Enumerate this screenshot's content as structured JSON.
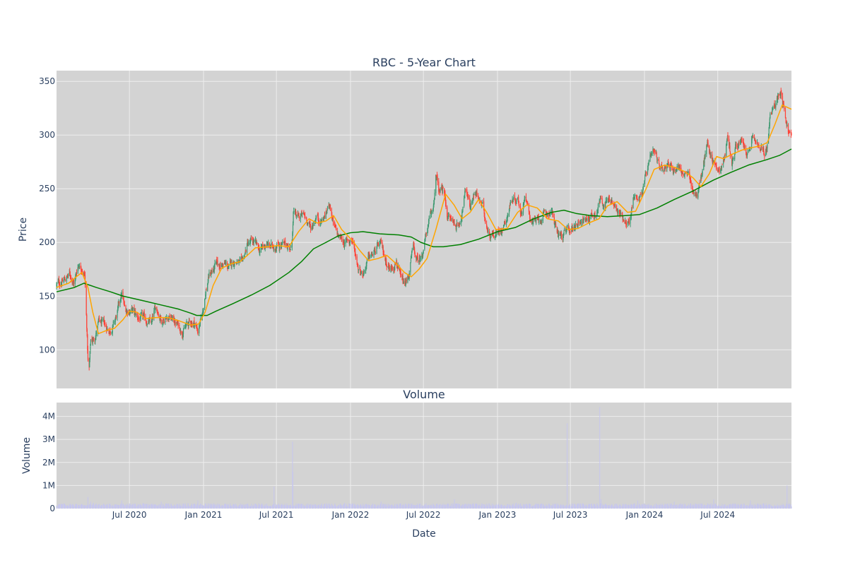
{
  "chart_data": [
    {
      "type": "candlestick",
      "title": "RBC - 5-Year Chart",
      "ylabel": "Price",
      "ylim": [
        64,
        360
      ],
      "yticks": [
        100,
        150,
        200,
        250,
        300,
        350
      ],
      "xlim": [
        "2020-01-02",
        "2024-12-31"
      ],
      "grid": true,
      "colors": {
        "up": "#3d9970",
        "down": "#ff4136",
        "ma_short": "#ffa500",
        "ma_long": "#008000",
        "plot_bg": "#d3d3d3",
        "grid": "#eeeeee"
      },
      "close_path": [
        [
          "2020-01-02",
          160
        ],
        [
          "2020-01-20",
          165
        ],
        [
          "2020-02-05",
          170
        ],
        [
          "2020-02-15",
          162
        ],
        [
          "2020-02-25",
          180
        ],
        [
          "2020-03-05",
          178
        ],
        [
          "2020-03-12",
          170
        ],
        [
          "2020-03-17",
          122
        ],
        [
          "2020-03-20",
          90
        ],
        [
          "2020-03-23",
          82
        ],
        [
          "2020-03-27",
          108
        ],
        [
          "2020-04-05",
          110
        ],
        [
          "2020-04-15",
          125
        ],
        [
          "2020-04-30",
          122
        ],
        [
          "2020-05-12",
          118
        ],
        [
          "2020-05-25",
          125
        ],
        [
          "2020-06-05",
          140
        ],
        [
          "2020-06-12",
          152
        ],
        [
          "2020-06-20",
          136
        ],
        [
          "2020-07-05",
          138
        ],
        [
          "2020-07-20",
          130
        ],
        [
          "2020-08-05",
          128
        ],
        [
          "2020-08-25",
          124
        ],
        [
          "2020-09-05",
          140
        ],
        [
          "2020-09-20",
          128
        ],
        [
          "2020-10-05",
          132
        ],
        [
          "2020-10-25",
          125
        ],
        [
          "2020-11-08",
          118
        ],
        [
          "2020-11-25",
          124
        ],
        [
          "2020-12-08",
          126
        ],
        [
          "2020-12-18",
          118
        ],
        [
          "2020-12-28",
          130
        ],
        [
          "2021-01-05",
          152
        ],
        [
          "2021-01-15",
          170
        ],
        [
          "2021-02-01",
          178
        ],
        [
          "2021-02-20",
          180
        ],
        [
          "2021-03-05",
          176
        ],
        [
          "2021-03-20",
          184
        ],
        [
          "2021-04-05",
          178
        ],
        [
          "2021-04-20",
          198
        ],
        [
          "2021-05-05",
          200
        ],
        [
          "2021-05-20",
          192
        ],
        [
          "2021-06-05",
          198
        ],
        [
          "2021-06-20",
          195
        ],
        [
          "2021-07-05",
          200
        ],
        [
          "2021-07-20",
          196
        ],
        [
          "2021-08-01",
          198
        ],
        [
          "2021-08-08",
          192
        ],
        [
          "2021-08-12",
          230
        ],
        [
          "2021-08-20",
          222
        ],
        [
          "2021-09-01",
          225
        ],
        [
          "2021-09-15",
          222
        ],
        [
          "2021-09-25",
          212
        ],
        [
          "2021-10-08",
          226
        ],
        [
          "2021-10-20",
          220
        ],
        [
          "2021-11-01",
          226
        ],
        [
          "2021-11-10",
          238
        ],
        [
          "2021-11-20",
          215
        ],
        [
          "2021-12-01",
          205
        ],
        [
          "2021-12-20",
          200
        ],
        [
          "2022-01-05",
          203
        ],
        [
          "2022-01-20",
          178
        ],
        [
          "2022-02-01",
          172
        ],
        [
          "2022-02-15",
          185
        ],
        [
          "2022-03-01",
          190
        ],
        [
          "2022-03-15",
          198
        ],
        [
          "2022-03-28",
          185
        ],
        [
          "2022-04-10",
          175
        ],
        [
          "2022-04-25",
          185
        ],
        [
          "2022-05-05",
          165
        ],
        [
          "2022-05-15",
          158
        ],
        [
          "2022-05-25",
          168
        ],
        [
          "2022-06-05",
          195
        ],
        [
          "2022-06-15",
          182
        ],
        [
          "2022-06-25",
          185
        ],
        [
          "2022-07-10",
          212
        ],
        [
          "2022-07-25",
          230
        ],
        [
          "2022-08-01",
          262
        ],
        [
          "2022-08-10",
          245
        ],
        [
          "2022-08-20",
          250
        ],
        [
          "2022-08-30",
          225
        ],
        [
          "2022-09-10",
          220
        ],
        [
          "2022-09-25",
          215
        ],
        [
          "2022-10-05",
          230
        ],
        [
          "2022-10-15",
          250
        ],
        [
          "2022-10-25",
          235
        ],
        [
          "2022-11-05",
          248
        ],
        [
          "2022-11-15",
          240
        ],
        [
          "2022-11-25",
          232
        ],
        [
          "2022-12-10",
          210
        ],
        [
          "2022-12-25",
          208
        ],
        [
          "2023-01-05",
          210
        ],
        [
          "2023-01-20",
          220
        ],
        [
          "2023-02-05",
          240
        ],
        [
          "2023-02-20",
          242
        ],
        [
          "2023-03-01",
          228
        ],
        [
          "2023-03-10",
          245
        ],
        [
          "2023-03-20",
          225
        ],
        [
          "2023-04-05",
          218
        ],
        [
          "2023-04-20",
          222
        ],
        [
          "2023-05-05",
          226
        ],
        [
          "2023-05-15",
          232
        ],
        [
          "2023-05-25",
          212
        ],
        [
          "2023-06-10",
          205
        ],
        [
          "2023-06-25",
          210
        ],
        [
          "2023-07-10",
          215
        ],
        [
          "2023-07-25",
          222
        ],
        [
          "2023-08-05",
          220
        ],
        [
          "2023-08-20",
          225
        ],
        [
          "2023-09-01",
          228
        ],
        [
          "2023-09-15",
          242
        ],
        [
          "2023-09-28",
          236
        ],
        [
          "2023-10-10",
          240
        ],
        [
          "2023-10-25",
          228
        ],
        [
          "2023-11-05",
          225
        ],
        [
          "2023-11-15",
          222
        ],
        [
          "2023-11-25",
          218
        ],
        [
          "2023-12-05",
          242
        ],
        [
          "2023-12-25",
          245
        ],
        [
          "2024-01-05",
          262
        ],
        [
          "2024-01-15",
          275
        ],
        [
          "2024-01-25",
          282
        ],
        [
          "2024-02-05",
          272
        ],
        [
          "2024-02-15",
          270
        ],
        [
          "2024-02-25",
          275
        ],
        [
          "2024-03-10",
          268
        ],
        [
          "2024-03-25",
          272
        ],
        [
          "2024-04-05",
          265
        ],
        [
          "2024-04-20",
          260
        ],
        [
          "2024-05-01",
          248
        ],
        [
          "2024-05-10",
          245
        ],
        [
          "2024-05-25",
          268
        ],
        [
          "2024-06-05",
          292
        ],
        [
          "2024-06-15",
          280
        ],
        [
          "2024-06-25",
          272
        ],
        [
          "2024-07-10",
          268
        ],
        [
          "2024-07-20",
          285
        ],
        [
          "2024-07-25",
          300
        ],
        [
          "2024-08-05",
          275
        ],
        [
          "2024-08-15",
          290
        ],
        [
          "2024-08-25",
          292
        ],
        [
          "2024-09-05",
          288
        ],
        [
          "2024-09-15",
          280
        ],
        [
          "2024-09-25",
          298
        ],
        [
          "2024-10-05",
          292
        ],
        [
          "2024-10-15",
          285
        ],
        [
          "2024-10-25",
          282
        ],
        [
          "2024-11-01",
          290
        ],
        [
          "2024-11-08",
          318
        ],
        [
          "2024-11-15",
          322
        ],
        [
          "2024-11-25",
          335
        ],
        [
          "2024-12-05",
          342
        ],
        [
          "2024-12-15",
          320
        ],
        [
          "2024-12-22",
          305
        ],
        [
          "2024-12-31",
          298
        ]
      ],
      "ma_short": [
        [
          "2020-01-02",
          158
        ],
        [
          "2020-02-01",
          162
        ],
        [
          "2020-02-20",
          168
        ],
        [
          "2020-03-05",
          172
        ],
        [
          "2020-03-20",
          158
        ],
        [
          "2020-04-01",
          135
        ],
        [
          "2020-04-15",
          115
        ],
        [
          "2020-05-05",
          118
        ],
        [
          "2020-05-25",
          120
        ],
        [
          "2020-06-15",
          128
        ],
        [
          "2020-07-01",
          136
        ],
        [
          "2020-07-20",
          135
        ],
        [
          "2020-08-10",
          129
        ],
        [
          "2020-09-05",
          130
        ],
        [
          "2020-10-05",
          130
        ],
        [
          "2020-11-01",
          127
        ],
        [
          "2020-12-01",
          123
        ],
        [
          "2020-12-20",
          124
        ],
        [
          "2021-01-05",
          135
        ],
        [
          "2021-01-25",
          160
        ],
        [
          "2021-02-15",
          176
        ],
        [
          "2021-03-10",
          180
        ],
        [
          "2021-04-01",
          182
        ],
        [
          "2021-04-20",
          188
        ],
        [
          "2021-05-10",
          195
        ],
        [
          "2021-06-10",
          196
        ],
        [
          "2021-07-05",
          197
        ],
        [
          "2021-08-01",
          196
        ],
        [
          "2021-08-25",
          210
        ],
        [
          "2021-09-20",
          222
        ],
        [
          "2021-10-10",
          218
        ],
        [
          "2021-11-01",
          220
        ],
        [
          "2021-11-20",
          225
        ],
        [
          "2021-12-10",
          212
        ],
        [
          "2022-01-05",
          202
        ],
        [
          "2022-01-25",
          192
        ],
        [
          "2022-02-15",
          183
        ],
        [
          "2022-03-10",
          185
        ],
        [
          "2022-04-01",
          188
        ],
        [
          "2022-04-25",
          180
        ],
        [
          "2022-05-15",
          172
        ],
        [
          "2022-06-01",
          168
        ],
        [
          "2022-06-20",
          175
        ],
        [
          "2022-07-10",
          185
        ],
        [
          "2022-08-01",
          212
        ],
        [
          "2022-08-25",
          245
        ],
        [
          "2022-09-15",
          235
        ],
        [
          "2022-10-05",
          222
        ],
        [
          "2022-10-25",
          228
        ],
        [
          "2022-11-15",
          240
        ],
        [
          "2022-12-05",
          228
        ],
        [
          "2022-12-28",
          212
        ],
        [
          "2023-01-25",
          213
        ],
        [
          "2023-02-20",
          228
        ],
        [
          "2023-03-15",
          235
        ],
        [
          "2023-04-10",
          232
        ],
        [
          "2023-05-05",
          222
        ],
        [
          "2023-06-01",
          220
        ],
        [
          "2023-06-25",
          212
        ],
        [
          "2023-07-20",
          213
        ],
        [
          "2023-08-15",
          218
        ],
        [
          "2023-09-10",
          222
        ],
        [
          "2023-10-01",
          234
        ],
        [
          "2023-10-25",
          238
        ],
        [
          "2023-11-20",
          228
        ],
        [
          "2023-12-10",
          229
        ],
        [
          "2024-01-05",
          250
        ],
        [
          "2024-01-25",
          268
        ],
        [
          "2024-02-20",
          272
        ],
        [
          "2024-03-15",
          270
        ],
        [
          "2024-04-10",
          266
        ],
        [
          "2024-05-01",
          260
        ],
        [
          "2024-05-20",
          252
        ],
        [
          "2024-06-10",
          264
        ],
        [
          "2024-06-28",
          280
        ],
        [
          "2024-07-15",
          278
        ],
        [
          "2024-08-05",
          282
        ],
        [
          "2024-08-30",
          286
        ],
        [
          "2024-09-20",
          288
        ],
        [
          "2024-10-15",
          290
        ],
        [
          "2024-11-01",
          293
        ],
        [
          "2024-11-20",
          310
        ],
        [
          "2024-12-08",
          328
        ],
        [
          "2024-12-31",
          324
        ]
      ],
      "ma_long": [
        [
          "2020-01-02",
          154
        ],
        [
          "2020-02-15",
          158
        ],
        [
          "2020-03-10",
          162
        ],
        [
          "2020-04-10",
          158
        ],
        [
          "2020-05-15",
          154
        ],
        [
          "2020-06-15",
          150
        ],
        [
          "2020-08-01",
          146
        ],
        [
          "2020-09-15",
          142
        ],
        [
          "2020-10-30",
          138
        ],
        [
          "2020-12-01",
          134
        ],
        [
          "2020-12-15",
          132
        ],
        [
          "2021-01-10",
          132
        ],
        [
          "2021-02-01",
          136
        ],
        [
          "2021-03-15",
          143
        ],
        [
          "2021-04-30",
          151
        ],
        [
          "2021-06-15",
          160
        ],
        [
          "2021-08-01",
          172
        ],
        [
          "2021-09-01",
          182
        ],
        [
          "2021-10-01",
          194
        ],
        [
          "2021-11-01",
          200
        ],
        [
          "2021-12-01",
          206
        ],
        [
          "2022-01-01",
          209
        ],
        [
          "2022-02-01",
          210
        ],
        [
          "2022-03-15",
          208
        ],
        [
          "2022-05-01",
          207
        ],
        [
          "2022-06-01",
          205
        ],
        [
          "2022-06-25",
          200
        ],
        [
          "2022-07-25",
          196
        ],
        [
          "2022-08-20",
          196
        ],
        [
          "2022-10-01",
          198
        ],
        [
          "2022-11-15",
          203
        ],
        [
          "2023-01-01",
          210
        ],
        [
          "2023-02-15",
          214
        ],
        [
          "2023-04-01",
          222
        ],
        [
          "2023-05-15",
          228
        ],
        [
          "2023-06-15",
          230
        ],
        [
          "2023-07-15",
          227
        ],
        [
          "2023-08-20",
          225
        ],
        [
          "2023-10-01",
          224
        ],
        [
          "2023-11-15",
          225
        ],
        [
          "2023-12-20",
          226
        ],
        [
          "2024-02-01",
          232
        ],
        [
          "2024-03-15",
          240
        ],
        [
          "2024-05-01",
          248
        ],
        [
          "2024-06-20",
          258
        ],
        [
          "2024-08-01",
          265
        ],
        [
          "2024-09-15",
          272
        ],
        [
          "2024-10-30",
          277
        ],
        [
          "2024-12-01",
          281
        ],
        [
          "2024-12-31",
          287
        ]
      ]
    },
    {
      "type": "bar",
      "title": "Volume",
      "xlabel": "Date",
      "ylabel": "Volume",
      "ylim": [
        0,
        4600000
      ],
      "yticks": [
        0,
        1000000,
        2000000,
        3000000,
        4000000
      ],
      "ytick_labels": [
        "0",
        "1M",
        "2M",
        "3M",
        "4M"
      ],
      "xlim": [
        "2020-01-02",
        "2024-12-31"
      ],
      "xticks": [
        "2020-07-01",
        "2021-01-01",
        "2021-07-01",
        "2022-01-01",
        "2022-07-01",
        "2023-01-01",
        "2023-07-01",
        "2024-01-01",
        "2024-07-01"
      ],
      "xtick_labels": [
        "Jul 2020",
        "Jan 2021",
        "Jul 2021",
        "Jan 2022",
        "Jul 2022",
        "Jan 2023",
        "Jul 2023",
        "Jan 2024",
        "Jul 2024"
      ],
      "grid": true,
      "colors": {
        "bar": "#c6c6ee"
      },
      "baseline": 150000,
      "spikes": [
        [
          "2020-03-20",
          500000
        ],
        [
          "2020-03-27",
          300000
        ],
        [
          "2020-04-03",
          250000
        ],
        [
          "2020-06-12",
          350000
        ],
        [
          "2020-09-18",
          300000
        ],
        [
          "2020-12-18",
          350000
        ],
        [
          "2021-06-25",
          950000
        ],
        [
          "2021-08-10",
          2900000
        ],
        [
          "2021-08-11",
          1600000
        ],
        [
          "2021-12-17",
          250000
        ],
        [
          "2022-03-18",
          300000
        ],
        [
          "2022-09-16",
          400000
        ],
        [
          "2023-02-17",
          250000
        ],
        [
          "2023-06-23",
          3700000
        ],
        [
          "2023-09-12",
          4400000
        ],
        [
          "2023-09-15",
          400000
        ],
        [
          "2023-12-15",
          350000
        ],
        [
          "2024-03-15",
          300000
        ],
        [
          "2024-06-21",
          400000
        ],
        [
          "2024-09-20",
          350000
        ],
        [
          "2024-12-20",
          1000000
        ]
      ]
    }
  ]
}
